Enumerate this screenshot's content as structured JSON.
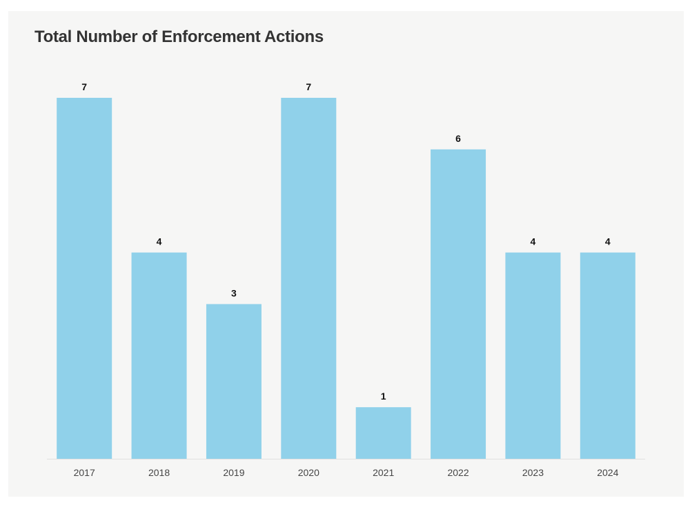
{
  "chart_data": {
    "type": "bar",
    "title": "Total Number of Enforcement Actions",
    "categories": [
      "2017",
      "2018",
      "2019",
      "2020",
      "2021",
      "2022",
      "2023",
      "2024"
    ],
    "values": [
      7,
      4,
      3,
      7,
      1,
      6,
      4,
      4
    ],
    "xlabel": "",
    "ylabel": "",
    "ylim": [
      0,
      7
    ],
    "grid": false,
    "data_labels": true,
    "colors": {
      "bar": "#90d1ea",
      "background": "#f6f6f5",
      "title": "#333333",
      "axis": "#e0e0e0"
    }
  }
}
